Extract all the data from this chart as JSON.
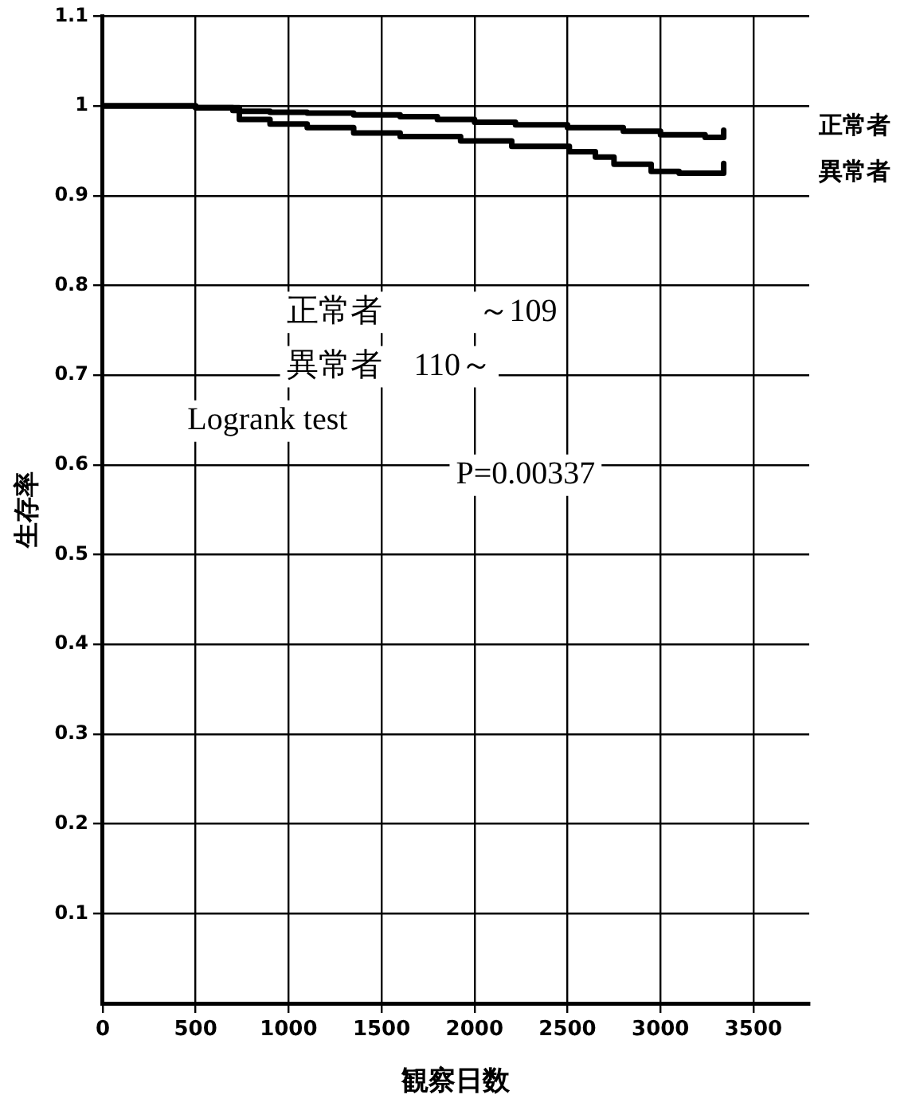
{
  "chart_data": {
    "type": "step",
    "xlabel": "観察日数",
    "ylabel": "生存率",
    "xlim": [
      0,
      3800
    ],
    "xticks": [
      0,
      500,
      1000,
      1500,
      2000,
      2500,
      3000,
      3500
    ],
    "ylim": [
      0,
      1.1
    ],
    "yticks": [
      0.1,
      0.2,
      0.3,
      0.4,
      0.5,
      0.6,
      0.7,
      0.8,
      0.9,
      1,
      1.1
    ],
    "grid": true,
    "legend": false,
    "marker": "none",
    "line_style": "solid",
    "series": [
      {
        "name": "正常者",
        "color": "#000000",
        "x": [
          0,
          500,
          735,
          900,
          1100,
          1350,
          1600,
          1800,
          2000,
          2220,
          2500,
          2800,
          3000,
          3240,
          3300,
          3340
        ],
        "values": [
          1,
          0.998,
          0.994,
          0.993,
          0.992,
          0.99,
          0.988,
          0.985,
          0.982,
          0.979,
          0.976,
          0.972,
          0.968,
          0.965,
          0.965,
          0.973
        ]
      },
      {
        "name": "異常者",
        "color": "#000000",
        "x": [
          0,
          500,
          700,
          735,
          900,
          1100,
          1350,
          1600,
          1925,
          2200,
          2510,
          2650,
          2750,
          2950,
          3100,
          3240,
          3300,
          3340
        ],
        "values": [
          1,
          0.998,
          0.995,
          0.985,
          0.98,
          0.976,
          0.97,
          0.966,
          0.961,
          0.955,
          0.949,
          0.943,
          0.935,
          0.927,
          0.925,
          0.925,
          0.925,
          0.936
        ]
      }
    ],
    "annotations": [
      "正常者　　　～109",
      "異常者　110～",
      "Logrank test",
      "P=0.00337"
    ]
  }
}
